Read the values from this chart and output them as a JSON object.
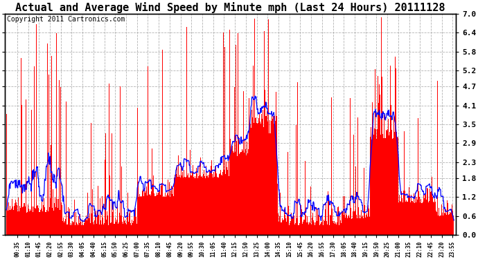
{
  "title": "Actual and Average Wind Speed by Minute mph (Last 24 Hours) 20111128",
  "copyright": "Copyright 2011 Cartronics.com",
  "yticks": [
    0.0,
    0.6,
    1.2,
    1.8,
    2.3,
    2.9,
    3.5,
    4.1,
    4.7,
    5.2,
    5.8,
    6.4,
    7.0
  ],
  "ylim": [
    0.0,
    7.0
  ],
  "bar_color": "#FF0000",
  "line_color": "#0000FF",
  "bg_color": "#FFFFFF",
  "grid_color": "#AAAAAA",
  "title_fontsize": 11,
  "copyright_fontsize": 7,
  "n_minutes": 1440
}
